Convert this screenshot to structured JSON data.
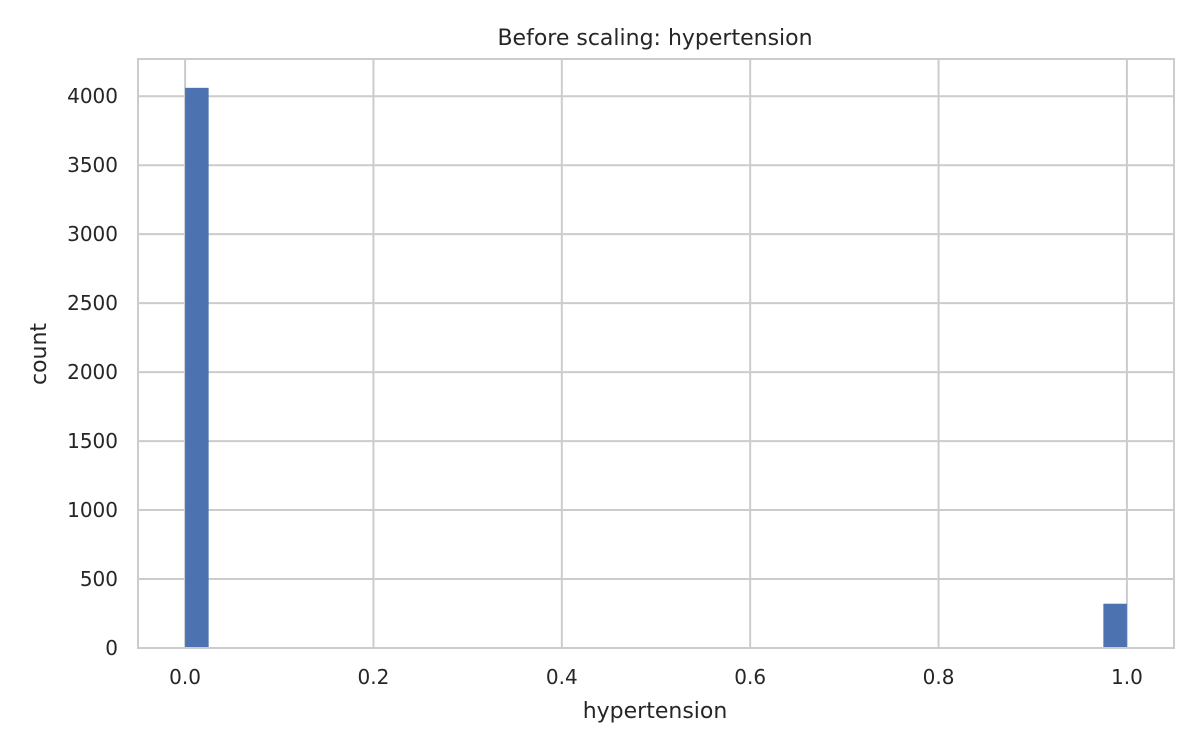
{
  "chart_data": {
    "type": "bar",
    "title": "Before scaling: hypertension",
    "xlabel": "hypertension",
    "ylabel": "count",
    "xlim": [
      -0.05,
      1.05
    ],
    "ylim": [
      0,
      4270
    ],
    "xticks": [
      0.0,
      0.2,
      0.4,
      0.6,
      0.8,
      1.0
    ],
    "xtick_labels": [
      "0.0",
      "0.2",
      "0.4",
      "0.6",
      "0.8",
      "1.0"
    ],
    "yticks": [
      0,
      500,
      1000,
      1500,
      2000,
      2500,
      3000,
      3500,
      4000
    ],
    "ytick_labels": [
      "0",
      "500",
      "1000",
      "1500",
      "2000",
      "2500",
      "3000",
      "3500",
      "4000"
    ],
    "bin_width": 0.025,
    "bins": [
      {
        "x_start": 0.0,
        "x_end": 0.025,
        "value": 4061
      },
      {
        "x_start": 0.975,
        "x_end": 1.0,
        "value": 321
      }
    ],
    "grid": true,
    "colors": {
      "bar": "#4c72b0",
      "grid": "#cccccc",
      "frame": "#cccccc",
      "text": "#262626"
    }
  }
}
